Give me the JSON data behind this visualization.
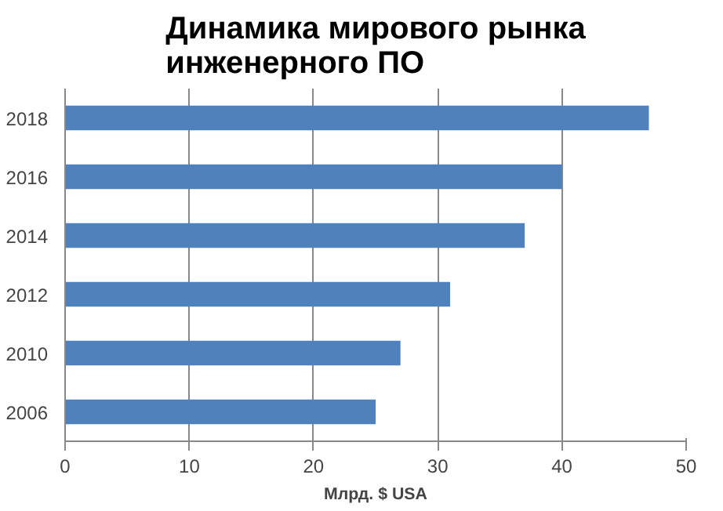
{
  "chart_data": {
    "type": "bar",
    "orientation": "horizontal",
    "title": "Динамика мирового рынка\nинженерного ПО",
    "xlabel": "Млрд. $ USA",
    "categories": [
      "2018",
      "2016",
      "2014",
      "2012",
      "2010",
      "2006"
    ],
    "values": [
      47,
      40,
      37,
      31,
      27,
      25
    ],
    "color": "#4f81bd",
    "xlim": [
      0,
      50
    ],
    "xticks": [
      0,
      10,
      20,
      30,
      40,
      50
    ],
    "grid": "x"
  }
}
